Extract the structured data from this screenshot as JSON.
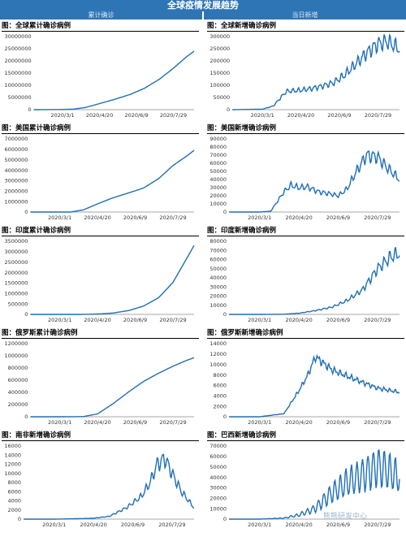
{
  "header": {
    "title": "全球疫情发展趋势",
    "left_label": "累计确诊",
    "right_label": "当日新增"
  },
  "watermark": "熊熊研发中心",
  "chart_data": [
    {
      "type": "line",
      "title": "图：全球累计确诊病例",
      "x_ticks": [
        "2020/3/1",
        "2020/4/20",
        "2020/6/9",
        "2020/7/29"
      ],
      "y_ticks": [
        0,
        5000000,
        10000000,
        15000000,
        20000000,
        25000000,
        30000000
      ],
      "ylim": [
        0,
        30000000
      ],
      "series": [
        {
          "x": [
            "2020/1/22",
            "2020/3/1",
            "2020/3/15",
            "2020/4/1",
            "2020/4/20",
            "2020/5/10",
            "2020/6/1",
            "2020/6/20",
            "2020/7/10",
            "2020/7/29",
            "2020/8/15",
            "2020/8/26"
          ],
          "values": [
            0,
            90000,
            200000,
            900000,
            2500000,
            4200000,
            6300000,
            8800000,
            12500000,
            17000000,
            21500000,
            24000000
          ]
        }
      ]
    },
    {
      "type": "line",
      "title": "图：全球新增确诊病例",
      "x_ticks": [
        "2020/3/1",
        "2020/4/20",
        "2020/6/9",
        "2020/7/29"
      ],
      "y_ticks": [
        0,
        50000,
        100000,
        150000,
        200000,
        250000,
        300000
      ],
      "ylim": [
        0,
        300000
      ],
      "series": [
        {
          "x": [
            "2020/1/22",
            "2020/3/1",
            "2020/3/15",
            "2020/4/1",
            "2020/4/20",
            "2020/5/1",
            "2020/5/15",
            "2020/6/1",
            "2020/6/15",
            "2020/7/1",
            "2020/7/15",
            "2020/7/29",
            "2020/8/10",
            "2020/8/26"
          ],
          "values": [
            0,
            2000,
            15000,
            75000,
            80000,
            85000,
            95000,
            110000,
            140000,
            190000,
            235000,
            270000,
            280000,
            250000
          ]
        }
      ]
    },
    {
      "type": "line",
      "title": "图：美国累计确诊病例",
      "x_ticks": [
        "2020/3/1",
        "2020/4/20",
        "2020/6/9",
        "2020/7/29"
      ],
      "y_ticks": [
        0,
        1000000,
        2000000,
        3000000,
        4000000,
        5000000,
        6000000,
        7000000
      ],
      "ylim": [
        0,
        7000000
      ],
      "series": [
        {
          "x": [
            "2020/1/22",
            "2020/3/1",
            "2020/3/15",
            "2020/4/1",
            "2020/4/20",
            "2020/5/10",
            "2020/6/1",
            "2020/6/20",
            "2020/7/10",
            "2020/7/29",
            "2020/8/15",
            "2020/8/26"
          ],
          "values": [
            0,
            0,
            3000,
            200000,
            780000,
            1350000,
            1850000,
            2300000,
            3200000,
            4450000,
            5300000,
            5900000
          ]
        }
      ]
    },
    {
      "type": "line",
      "title": "图：美国新增确诊病例",
      "x_ticks": [
        "2020/3/1",
        "2020/4/20",
        "2020/6/9",
        "2020/7/29"
      ],
      "y_ticks": [
        0,
        10000,
        20000,
        30000,
        40000,
        50000,
        60000,
        70000,
        80000,
        90000
      ],
      "ylim": [
        0,
        90000
      ],
      "series": [
        {
          "x": [
            "2020/1/22",
            "2020/3/1",
            "2020/3/15",
            "2020/4/1",
            "2020/4/10",
            "2020/4/20",
            "2020/5/1",
            "2020/5/15",
            "2020/6/1",
            "2020/6/9",
            "2020/6/20",
            "2020/7/1",
            "2020/7/15",
            "2020/7/29",
            "2020/8/10",
            "2020/8/26"
          ],
          "values": [
            0,
            0,
            1000,
            25000,
            33000,
            30000,
            31000,
            25000,
            22000,
            20000,
            28000,
            48000,
            70000,
            68000,
            55000,
            40000
          ]
        }
      ]
    },
    {
      "type": "line",
      "title": "图：印度累计确诊病例",
      "x_ticks": [
        "2020/3/1",
        "2020/4/20",
        "2020/6/9",
        "2020/7/29"
      ],
      "y_ticks": [
        0,
        500000,
        1000000,
        1500000,
        2000000,
        2500000,
        3000000,
        3500000
      ],
      "ylim": [
        0,
        3500000
      ],
      "series": [
        {
          "x": [
            "2020/1/22",
            "2020/3/1",
            "2020/4/1",
            "2020/4/20",
            "2020/5/10",
            "2020/6/1",
            "2020/6/20",
            "2020/7/10",
            "2020/7/29",
            "2020/8/15",
            "2020/8/26"
          ],
          "values": [
            0,
            0,
            2000,
            18000,
            62000,
            190000,
            400000,
            800000,
            1530000,
            2600000,
            3300000
          ]
        }
      ]
    },
    {
      "type": "line",
      "title": "图：印度新增确诊病例",
      "x_ticks": [
        "2020/3/1",
        "2020/4/20",
        "2020/6/9",
        "2020/7/29"
      ],
      "y_ticks": [
        0,
        10000,
        20000,
        30000,
        40000,
        50000,
        60000,
        70000,
        80000
      ],
      "ylim": [
        0,
        80000
      ],
      "series": [
        {
          "x": [
            "2020/1/22",
            "2020/3/1",
            "2020/4/1",
            "2020/4/20",
            "2020/5/10",
            "2020/6/1",
            "2020/6/20",
            "2020/7/10",
            "2020/7/29",
            "2020/8/15",
            "2020/8/26"
          ],
          "values": [
            0,
            0,
            200,
            1300,
            4000,
            8000,
            15000,
            27000,
            50000,
            63000,
            67000
          ]
        }
      ]
    },
    {
      "type": "line",
      "title": "图：俄罗斯累计确诊病例",
      "x_ticks": [
        "2020/3/1",
        "2020/4/20",
        "2020/6/9",
        "2020/7/29"
      ],
      "y_ticks": [
        0,
        200000,
        400000,
        600000,
        800000,
        1000000,
        1200000
      ],
      "ylim": [
        0,
        1200000
      ],
      "series": [
        {
          "x": [
            "2020/1/22",
            "2020/3/1",
            "2020/4/1",
            "2020/4/20",
            "2020/5/10",
            "2020/6/1",
            "2020/6/20",
            "2020/7/10",
            "2020/7/29",
            "2020/8/15",
            "2020/8/26"
          ],
          "values": [
            0,
            0,
            2700,
            47000,
            210000,
            415000,
            580000,
            715000,
            830000,
            920000,
            970000
          ]
        }
      ]
    },
    {
      "type": "line",
      "title": "图：俄罗斯新增确诊病例",
      "x_ticks": [
        "2020/3/1",
        "2020/4/20",
        "2020/6/9",
        "2020/7/29"
      ],
      "y_ticks": [
        0,
        2000,
        4000,
        6000,
        8000,
        10000,
        12000,
        14000
      ],
      "ylim": [
        0,
        14000
      ],
      "series": [
        {
          "x": [
            "2020/1/22",
            "2020/3/1",
            "2020/4/1",
            "2020/4/20",
            "2020/5/1",
            "2020/5/11",
            "2020/6/1",
            "2020/6/20",
            "2020/7/10",
            "2020/7/29",
            "2020/8/15",
            "2020/8/26"
          ],
          "values": [
            0,
            0,
            600,
            5000,
            7900,
            11500,
            9000,
            7800,
            6600,
            5500,
            5000,
            4700
          ]
        }
      ]
    },
    {
      "type": "line",
      "title": "图：南非新增确诊病例",
      "x_ticks": [
        "2020/3/1",
        "2020/4/20",
        "2020/6/9",
        "2020/7/29"
      ],
      "y_ticks": [
        0,
        2000,
        4000,
        6000,
        8000,
        10000,
        12000,
        14000,
        16000
      ],
      "ylim": [
        0,
        16000
      ],
      "series": [
        {
          "x": [
            "2020/1/22",
            "2020/3/1",
            "2020/4/1",
            "2020/4/20",
            "2020/5/10",
            "2020/6/1",
            "2020/6/20",
            "2020/7/1",
            "2020/7/10",
            "2020/7/20",
            "2020/7/29",
            "2020/8/10",
            "2020/8/26"
          ],
          "values": [
            0,
            0,
            100,
            200,
            600,
            2500,
            5000,
            8000,
            12000,
            13300,
            10000,
            6000,
            2500
          ]
        }
      ]
    },
    {
      "type": "line",
      "title": "图：巴西新增确诊病例",
      "x_ticks": [
        "2020/3/1",
        "2020/4/20",
        "2020/6/9",
        "2020/7/29"
      ],
      "y_ticks": [
        0,
        10000,
        20000,
        30000,
        40000,
        50000,
        60000,
        70000
      ],
      "ylim": [
        0,
        70000
      ],
      "series": [
        {
          "x": [
            "2020/1/22",
            "2020/3/1",
            "2020/4/1",
            "2020/4/20",
            "2020/5/10",
            "2020/6/1",
            "2020/6/20",
            "2020/7/10",
            "2020/7/29",
            "2020/8/10",
            "2020/8/26"
          ],
          "values": [
            0,
            0,
            1000,
            4000,
            10000,
            25000,
            35000,
            42000,
            50000,
            47000,
            40000
          ]
        }
      ]
    }
  ]
}
